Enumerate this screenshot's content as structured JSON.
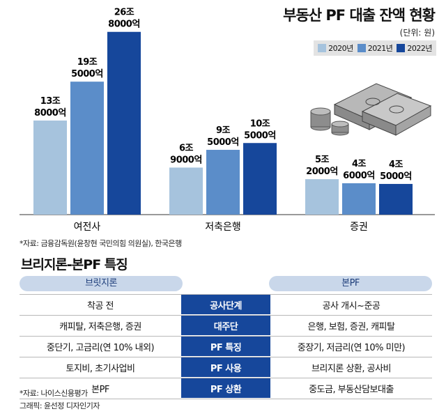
{
  "title": "부동산 PF 대출 잔액 현황",
  "unit": "(단위: 원)",
  "chart_data": {
    "type": "bar",
    "categories": [
      "여전사",
      "저축은행",
      "증권"
    ],
    "series": [
      {
        "name": "2020년",
        "color": "#a6c3dd",
        "values": [
          13.8,
          6.9,
          5.2
        ],
        "labels": [
          [
            "13조",
            "8000억"
          ],
          [
            "6조",
            "9000억"
          ],
          [
            "5조",
            "2000억"
          ]
        ]
      },
      {
        "name": "2021년",
        "color": "#5b8dc9",
        "values": [
          19.5,
          9.5,
          4.6
        ],
        "labels": [
          [
            "19조",
            "5000억"
          ],
          [
            "9조",
            "5000억"
          ],
          [
            "4조",
            "6000억"
          ]
        ]
      },
      {
        "name": "2022년",
        "color": "#16479b",
        "values": [
          26.8,
          10.5,
          4.5
        ],
        "labels": [
          [
            "26조",
            "8000억"
          ],
          [
            "10조",
            "5000억"
          ],
          [
            "4조",
            "5000억"
          ]
        ]
      }
    ],
    "ylim": [
      0,
      28
    ],
    "title": "부동산 PF 대출 잔액 현황",
    "xlabel": "",
    "ylabel": ""
  },
  "source1": "*자료: 금융감독원(윤창현 국민의힘 의원실), 한국은행",
  "table": {
    "title": "브리지론-본PF 특징",
    "left_header": "브릿지론",
    "right_header": "본PF",
    "rows": [
      {
        "left": "착공 전",
        "mid": "공사단계",
        "right": "공사 개시~준공"
      },
      {
        "left": "캐피탈, 저축은행, 증권",
        "mid": "대주단",
        "right": "은행, 보험, 증권, 캐피탈"
      },
      {
        "left": "중단기, 고금리(연 10% 내외)",
        "mid": "PF 특징",
        "right": "중장기, 저금리(연 10% 미만)"
      },
      {
        "left": "토지비, 초기사업비",
        "mid": "PF 사용",
        "right": "브리지론 상환, 공사비"
      },
      {
        "left": "본PF",
        "mid": "PF 상환",
        "right": "중도금, 부동산담보대출"
      }
    ]
  },
  "source2": "*자료: 나이스신용평가",
  "credit": "그래픽: 윤선정 디자인기자"
}
